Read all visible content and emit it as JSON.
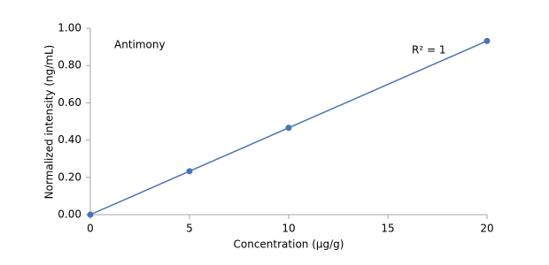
{
  "chart_data": {
    "type": "scatter-line",
    "x_label": "Concentration (µg/g)",
    "y_label": "Normalized intensity (ng/mL)",
    "annotations": [
      "Antimony",
      "R² = 1"
    ],
    "series": [
      {
        "name": "Antimony",
        "color": "#4a72b8",
        "x": [
          0,
          5,
          10,
          20
        ],
        "values": [
          0,
          0.233,
          0.466,
          0.932
        ]
      }
    ],
    "xlim": [
      0,
      20
    ],
    "xticks": [
      0,
      5,
      10,
      15,
      20
    ],
    "ylim": [
      0,
      1
    ],
    "yticks": [
      {
        "value": 0,
        "label": "0.00"
      },
      {
        "value": 0.2,
        "label": "0.20"
      },
      {
        "value": 0.4,
        "label": "0.40"
      },
      {
        "value": 0.6,
        "label": "0.60"
      },
      {
        "value": 0.8,
        "label": "0.80"
      },
      {
        "value": 1,
        "label": "1.00"
      }
    ],
    "grid": false
  }
}
